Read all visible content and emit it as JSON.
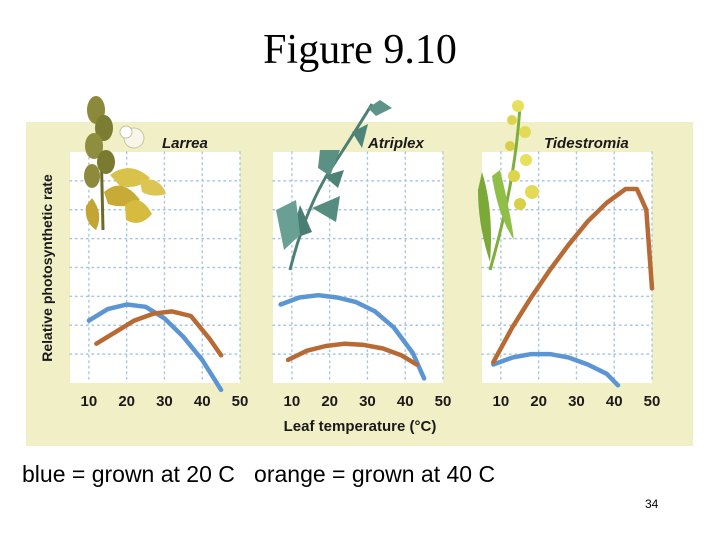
{
  "slide": {
    "title": "Figure 9.10",
    "caption": "blue = grown at 20 C   orange = grown at 40 C",
    "page_number": "34"
  },
  "colors": {
    "panel_bg": "#f1efc6",
    "plot_bg": "#ffffff",
    "grid": "#a8c6df",
    "grown_20C": "#5b95d3",
    "grown_40C": "#b86a35"
  },
  "chart_data": {
    "type": "line",
    "shared_ylabel": "Relative photosynthetic rate",
    "shared_xlabel": "Leaf temperature (°C)",
    "x_ticks": [
      "10",
      "20",
      "30",
      "40",
      "50"
    ],
    "xlim": [
      5,
      50
    ],
    "ylim": [
      0,
      100
    ],
    "legend": [
      "blue = grown at 20 C",
      "orange = grown at 40 C"
    ],
    "panels": [
      {
        "title": "Larrea",
        "series": [
          {
            "name": "grown at 20 C",
            "color": "blue",
            "x": [
              10,
              15,
              20,
              25,
              30,
              35,
              40,
              45
            ],
            "y": [
              27,
              32,
              34,
              33,
              28,
              20,
              10,
              -3
            ]
          },
          {
            "name": "grown at 40 C",
            "color": "orange",
            "x": [
              12,
              17,
              22,
              27,
              32,
              37,
              42,
              45
            ],
            "y": [
              17,
              22,
              27,
              30,
              31,
              29,
              19,
              12
            ]
          }
        ]
      },
      {
        "title": "Atriplex",
        "series": [
          {
            "name": "grown at 20 C",
            "color": "blue",
            "x": [
              7,
              12,
              17,
              22,
              27,
              32,
              37,
              42,
              45
            ],
            "y": [
              34,
              37,
              38,
              37,
              35,
              31,
              24,
              13,
              2
            ]
          },
          {
            "name": "grown at 40 C",
            "color": "orange",
            "x": [
              9,
              14,
              19,
              24,
              29,
              34,
              39,
              43
            ],
            "y": [
              10,
              14,
              16,
              17,
              16.5,
              15,
              12,
              8
            ]
          }
        ]
      },
      {
        "title": "Tidestromia",
        "series": [
          {
            "name": "grown at 20 C",
            "color": "blue",
            "x": [
              8,
              13,
              18,
              23,
              28,
              33,
              38,
              41
            ],
            "y": [
              8,
              11,
              12.5,
              12.5,
              11,
              8,
              4,
              -1
            ]
          },
          {
            "name": "grown at 40 C",
            "color": "orange",
            "x": [
              8,
              13,
              18,
              23,
              28,
              33,
              38,
              43,
              46,
              48.5,
              50
            ],
            "y": [
              9,
              24,
              37,
              49,
              60,
              70,
              78,
              84,
              84,
              75,
              41
            ]
          }
        ]
      }
    ]
  }
}
